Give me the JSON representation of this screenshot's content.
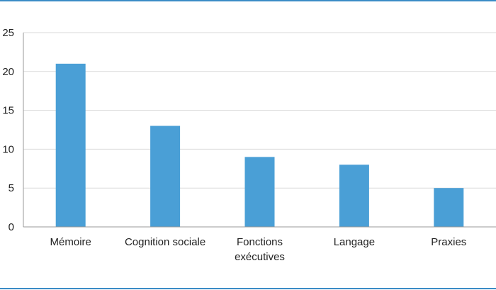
{
  "colors": {
    "bar": "#4a9fd6",
    "rule": "#3a8cc6",
    "grid": "#d9d9d9",
    "axis": "#9a9a9a"
  },
  "chart_data": {
    "type": "bar",
    "title": "",
    "xlabel": "",
    "ylabel": "",
    "categories": [
      [
        "Mémoire"
      ],
      [
        "Cognition sociale"
      ],
      [
        "Fonctions",
        "exécutives"
      ],
      [
        "Langage"
      ],
      [
        "Praxies"
      ]
    ],
    "values": [
      21,
      13,
      9,
      8,
      5
    ],
    "ylim": [
      0,
      25
    ],
    "yticks": [
      0,
      5,
      10,
      15,
      20,
      25
    ],
    "grid": true,
    "legend": "none"
  }
}
